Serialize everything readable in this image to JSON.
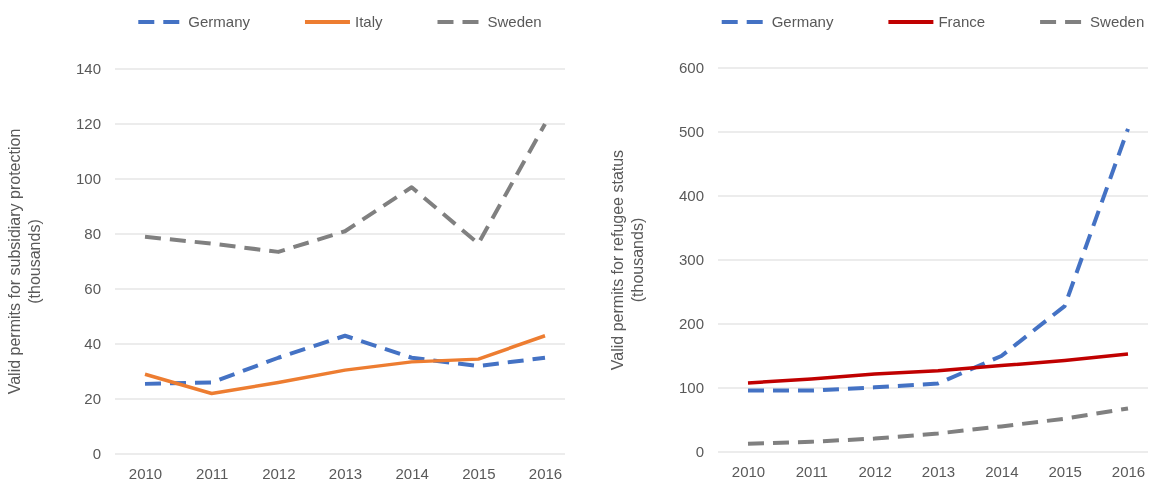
{
  "chart_data": [
    {
      "type": "line",
      "categories": [
        "2010",
        "2011",
        "2012",
        "2013",
        "2014",
        "2015",
        "2016"
      ],
      "ylabel": "Valid permits for subsidiary protection (thousands)",
      "ylim": [
        0,
        140
      ],
      "yticks": [
        0,
        20,
        40,
        60,
        80,
        100,
        120,
        140
      ],
      "grid": "y",
      "legend": "top",
      "series": [
        {
          "name": "Germany",
          "color": "#4472c4",
          "line_style": "dashed",
          "values": [
            25.5,
            26,
            35,
            43,
            35,
            32,
            35
          ]
        },
        {
          "name": "Italy",
          "color": "#ed7d31",
          "line_style": "solid",
          "values": [
            29,
            22,
            26,
            30.5,
            33.5,
            34.5,
            43
          ]
        },
        {
          "name": "Sweden",
          "color": "#808080",
          "line_style": "dashed",
          "values": [
            79,
            76.5,
            73.5,
            81,
            97,
            76.5,
            120
          ]
        }
      ]
    },
    {
      "type": "line",
      "categories": [
        "2010",
        "2011",
        "2012",
        "2013",
        "2014",
        "2015",
        "2016"
      ],
      "ylabel": "Valid permits for refugee status (thousands)",
      "ylim": [
        0,
        600
      ],
      "yticks": [
        0,
        100,
        200,
        300,
        400,
        500,
        600
      ],
      "grid": "y",
      "legend": "top",
      "series": [
        {
          "name": "Germany",
          "color": "#4472c4",
          "line_style": "dashed",
          "values": [
            96,
            96,
            101,
            107,
            150,
            228,
            505
          ]
        },
        {
          "name": "France",
          "color": "#c00000",
          "line_style": "solid",
          "values": [
            108,
            114,
            122,
            127,
            135,
            143,
            153
          ]
        },
        {
          "name": "Sweden",
          "color": "#808080",
          "line_style": "dashed",
          "values": [
            13,
            16,
            21,
            29,
            40,
            52,
            68
          ]
        }
      ]
    }
  ]
}
